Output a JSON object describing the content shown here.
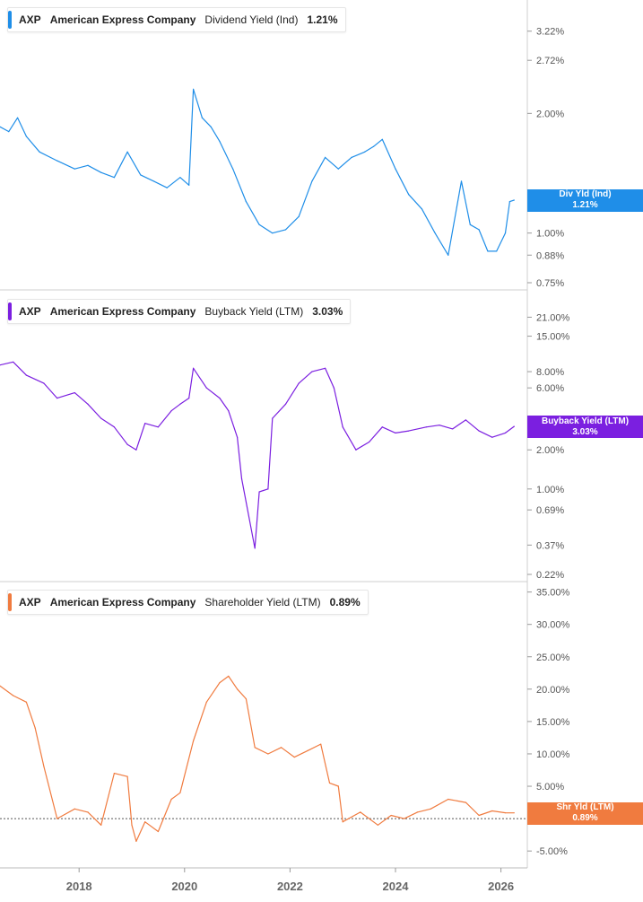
{
  "chart_data": [
    {
      "type": "line",
      "ticker": "AXP",
      "company": "American Express Company",
      "metric": "Dividend Yield (Ind)",
      "current_value": "1.21%",
      "badge": {
        "line1": "Div Yld (Ind)",
        "line2": "1.21%"
      },
      "color": "#1f8ee8",
      "scale": "log",
      "ylim": [
        0.75,
        3.7
      ],
      "yticks": [
        {
          "v": 3.22,
          "label": "3.22%"
        },
        {
          "v": 2.72,
          "label": "2.72%"
        },
        {
          "v": 2.0,
          "label": "2.00%"
        },
        {
          "v": 1.0,
          "label": "1.00%"
        },
        {
          "v": 0.88,
          "label": "0.88%"
        },
        {
          "v": 0.75,
          "label": "0.75%"
        }
      ],
      "points": [
        [
          "2016-07",
          1.85
        ],
        [
          "2016-09",
          1.8
        ],
        [
          "2016-11",
          1.95
        ],
        [
          "2017-01",
          1.75
        ],
        [
          "2017-04",
          1.6
        ],
        [
          "2017-08",
          1.52
        ],
        [
          "2017-12",
          1.45
        ],
        [
          "2018-03",
          1.48
        ],
        [
          "2018-06",
          1.42
        ],
        [
          "2018-09",
          1.38
        ],
        [
          "2018-12",
          1.6
        ],
        [
          "2019-03",
          1.4
        ],
        [
          "2019-06",
          1.35
        ],
        [
          "2019-09",
          1.3
        ],
        [
          "2019-12",
          1.38
        ],
        [
          "2020-02",
          1.32
        ],
        [
          "2020-03",
          2.3
        ],
        [
          "2020-05",
          1.95
        ],
        [
          "2020-07",
          1.85
        ],
        [
          "2020-09",
          1.7
        ],
        [
          "2020-12",
          1.45
        ],
        [
          "2021-03",
          1.2
        ],
        [
          "2021-06",
          1.05
        ],
        [
          "2021-09",
          1.0
        ],
        [
          "2021-12",
          1.02
        ],
        [
          "2022-03",
          1.1
        ],
        [
          "2022-06",
          1.35
        ],
        [
          "2022-09",
          1.55
        ],
        [
          "2022-12",
          1.45
        ],
        [
          "2023-03",
          1.55
        ],
        [
          "2023-06",
          1.6
        ],
        [
          "2023-08",
          1.65
        ],
        [
          "2023-10",
          1.72
        ],
        [
          "2024-01",
          1.45
        ],
        [
          "2024-04",
          1.25
        ],
        [
          "2024-07",
          1.15
        ],
        [
          "2024-10",
          1.0
        ],
        [
          "2025-01",
          0.88
        ],
        [
          "2025-04",
          1.35
        ],
        [
          "2025-06",
          1.05
        ],
        [
          "2025-08",
          1.02
        ],
        [
          "2025-10",
          0.9
        ],
        [
          "2025-12",
          0.9
        ],
        [
          "2026-02",
          1.0
        ],
        [
          "2026-03",
          1.2
        ],
        [
          "2026-04",
          1.21
        ]
      ]
    },
    {
      "type": "line",
      "ticker": "AXP",
      "company": "American Express Company",
      "metric": "Buyback Yield (LTM)",
      "current_value": "3.03%",
      "badge": {
        "line1": "Buyback Yield (LTM)",
        "line2": "3.03%"
      },
      "color": "#7b1fe0",
      "scale": "log",
      "ylim": [
        0.22,
        30
      ],
      "yticks": [
        {
          "v": 21,
          "label": "21.00%"
        },
        {
          "v": 15,
          "label": "15.00%"
        },
        {
          "v": 8,
          "label": "8.00%"
        },
        {
          "v": 6,
          "label": "6.00%"
        },
        {
          "v": 2,
          "label": "2.00%"
        },
        {
          "v": 1,
          "label": "1.00%"
        },
        {
          "v": 0.69,
          "label": "0.69%"
        },
        {
          "v": 0.37,
          "label": "0.37%"
        },
        {
          "v": 0.22,
          "label": "0.22%"
        }
      ],
      "points": [
        [
          "2016-07",
          9.0
        ],
        [
          "2016-10",
          9.5
        ],
        [
          "2017-01",
          7.5
        ],
        [
          "2017-05",
          6.5
        ],
        [
          "2017-08",
          5.0
        ],
        [
          "2017-12",
          5.5
        ],
        [
          "2018-03",
          4.5
        ],
        [
          "2018-06",
          3.5
        ],
        [
          "2018-09",
          3.0
        ],
        [
          "2018-12",
          2.2
        ],
        [
          "2019-02",
          2.0
        ],
        [
          "2019-04",
          3.2
        ],
        [
          "2019-07",
          3.0
        ],
        [
          "2019-10",
          4.0
        ],
        [
          "2019-12",
          4.5
        ],
        [
          "2020-02",
          5.0
        ],
        [
          "2020-03",
          8.5
        ],
        [
          "2020-06",
          6.0
        ],
        [
          "2020-09",
          5.0
        ],
        [
          "2020-11",
          4.0
        ],
        [
          "2021-01",
          2.5
        ],
        [
          "2021-02",
          1.2
        ],
        [
          "2021-05",
          0.35
        ],
        [
          "2021-06",
          0.95
        ],
        [
          "2021-08",
          1.0
        ],
        [
          "2021-09",
          3.5
        ],
        [
          "2021-12",
          4.5
        ],
        [
          "2022-03",
          6.5
        ],
        [
          "2022-06",
          8.0
        ],
        [
          "2022-09",
          8.5
        ],
        [
          "2022-11",
          6.0
        ],
        [
          "2023-01",
          3.0
        ],
        [
          "2023-04",
          2.0
        ],
        [
          "2023-07",
          2.3
        ],
        [
          "2023-10",
          3.0
        ],
        [
          "2024-01",
          2.7
        ],
        [
          "2024-04",
          2.8
        ],
        [
          "2024-08",
          3.0
        ],
        [
          "2024-11",
          3.1
        ],
        [
          "2025-02",
          2.9
        ],
        [
          "2025-05",
          3.4
        ],
        [
          "2025-08",
          2.8
        ],
        [
          "2025-11",
          2.5
        ],
        [
          "2026-02",
          2.7
        ],
        [
          "2026-04",
          3.03
        ]
      ]
    },
    {
      "type": "line",
      "ticker": "AXP",
      "company": "American Express Company",
      "metric": "Shareholder Yield (LTM)",
      "current_value": "0.89%",
      "badge": {
        "line1": "Shr Yld (LTM)",
        "line2": "0.89%"
      },
      "color": "#f07b3f",
      "scale": "linear",
      "ylim": [
        -6.5,
        35.5
      ],
      "yticks": [
        {
          "v": 35,
          "label": "35.00%"
        },
        {
          "v": 30,
          "label": "30.00%"
        },
        {
          "v": 25,
          "label": "25.00%"
        },
        {
          "v": 20,
          "label": "20.00%"
        },
        {
          "v": 15,
          "label": "15.00%"
        },
        {
          "v": 10,
          "label": "10.00%"
        },
        {
          "v": 5,
          "label": "5.00%"
        },
        {
          "v": -5,
          "label": "-5.00%"
        }
      ],
      "zero_line": true,
      "points": [
        [
          "2016-07",
          20.5
        ],
        [
          "2016-10",
          19.0
        ],
        [
          "2017-01",
          18.0
        ],
        [
          "2017-03",
          14.0
        ],
        [
          "2017-05",
          8.0
        ],
        [
          "2017-08",
          0.0
        ],
        [
          "2017-12",
          1.5
        ],
        [
          "2018-03",
          1.0
        ],
        [
          "2018-06",
          -1.0
        ],
        [
          "2018-09",
          7.0
        ],
        [
          "2018-12",
          6.5
        ],
        [
          "2019-01",
          -1.0
        ],
        [
          "2019-02",
          -3.5
        ],
        [
          "2019-04",
          -0.5
        ],
        [
          "2019-07",
          -2.0
        ],
        [
          "2019-10",
          3.0
        ],
        [
          "2019-12",
          4.0
        ],
        [
          "2020-03",
          12.0
        ],
        [
          "2020-06",
          18.0
        ],
        [
          "2020-09",
          21.0
        ],
        [
          "2020-11",
          22.0
        ],
        [
          "2021-01",
          20.0
        ],
        [
          "2021-03",
          18.5
        ],
        [
          "2021-05",
          11.0
        ],
        [
          "2021-08",
          10.0
        ],
        [
          "2021-11",
          11.0
        ],
        [
          "2022-02",
          9.5
        ],
        [
          "2022-05",
          10.5
        ],
        [
          "2022-08",
          11.5
        ],
        [
          "2022-10",
          5.5
        ],
        [
          "2022-12",
          5.0
        ],
        [
          "2023-01",
          -0.5
        ],
        [
          "2023-05",
          1.0
        ],
        [
          "2023-09",
          -1.0
        ],
        [
          "2023-12",
          0.5
        ],
        [
          "2024-03",
          0.0
        ],
        [
          "2024-06",
          1.0
        ],
        [
          "2024-09",
          1.5
        ],
        [
          "2025-01",
          3.0
        ],
        [
          "2025-05",
          2.5
        ],
        [
          "2025-08",
          0.5
        ],
        [
          "2025-11",
          1.2
        ],
        [
          "2026-02",
          0.9
        ],
        [
          "2026-04",
          0.89
        ]
      ]
    }
  ],
  "x_axis": {
    "range": [
      "2016-07",
      "2026-07"
    ],
    "ticks": [
      "2018",
      "2020",
      "2022",
      "2024",
      "2026"
    ]
  }
}
